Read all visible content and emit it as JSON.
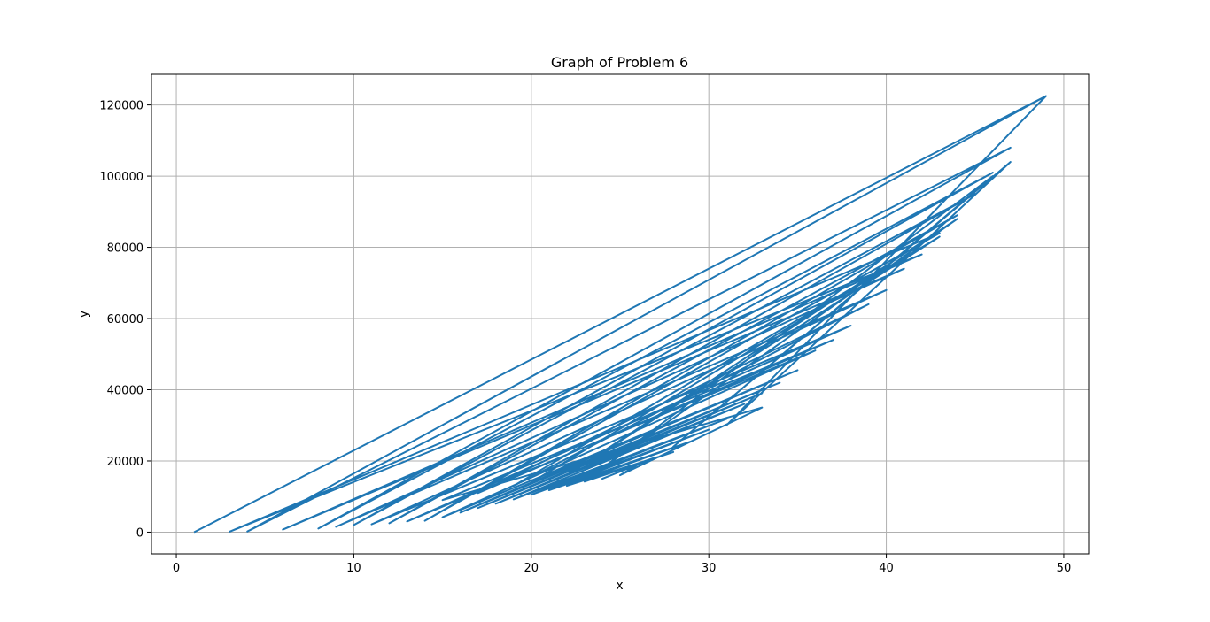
{
  "chart_data": {
    "type": "line",
    "title": "Graph of Problem 6",
    "xlabel": "x",
    "ylabel": "y",
    "xlim": [
      -1.4,
      51.4
    ],
    "ylim": [
      -6100,
      128600
    ],
    "xticks": [
      0,
      10,
      20,
      30,
      40,
      50
    ],
    "yticks": [
      0,
      20000,
      40000,
      60000,
      80000,
      100000,
      120000
    ],
    "grid": true,
    "series": [
      {
        "color": "#1f77b4",
        "x": [
          1,
          49,
          4,
          47,
          8,
          46,
          10,
          45,
          12,
          44,
          14,
          43,
          3,
          42,
          6,
          41,
          9,
          40,
          11,
          38,
          13,
          36,
          15,
          35,
          16,
          34,
          17,
          33,
          18,
          32,
          19,
          31,
          20,
          30,
          21,
          29,
          22,
          28,
          23,
          27,
          24,
          26,
          25,
          33,
          15,
          37,
          17,
          39,
          19,
          42,
          20,
          43,
          22,
          44,
          24,
          46,
          28,
          47,
          31,
          49
        ],
        "y": [
          1,
          122500,
          200,
          108000,
          1000,
          101000,
          2000,
          95000,
          2500,
          89000,
          3200,
          84000,
          150,
          78000,
          700,
          74000,
          1500,
          68000,
          2200,
          58000,
          3000,
          51000,
          4200,
          45500,
          5500,
          42000,
          6800,
          39000,
          8000,
          36000,
          9200,
          31800,
          10500,
          28800,
          11800,
          25500,
          13000,
          22500,
          14200,
          21000,
          15000,
          19000,
          16000,
          35000,
          9000,
          54000,
          11000,
          64000,
          13000,
          80000,
          14000,
          83000,
          16000,
          88000,
          18000,
          100000,
          24000,
          104000,
          30000,
          122500
        ]
      }
    ]
  }
}
